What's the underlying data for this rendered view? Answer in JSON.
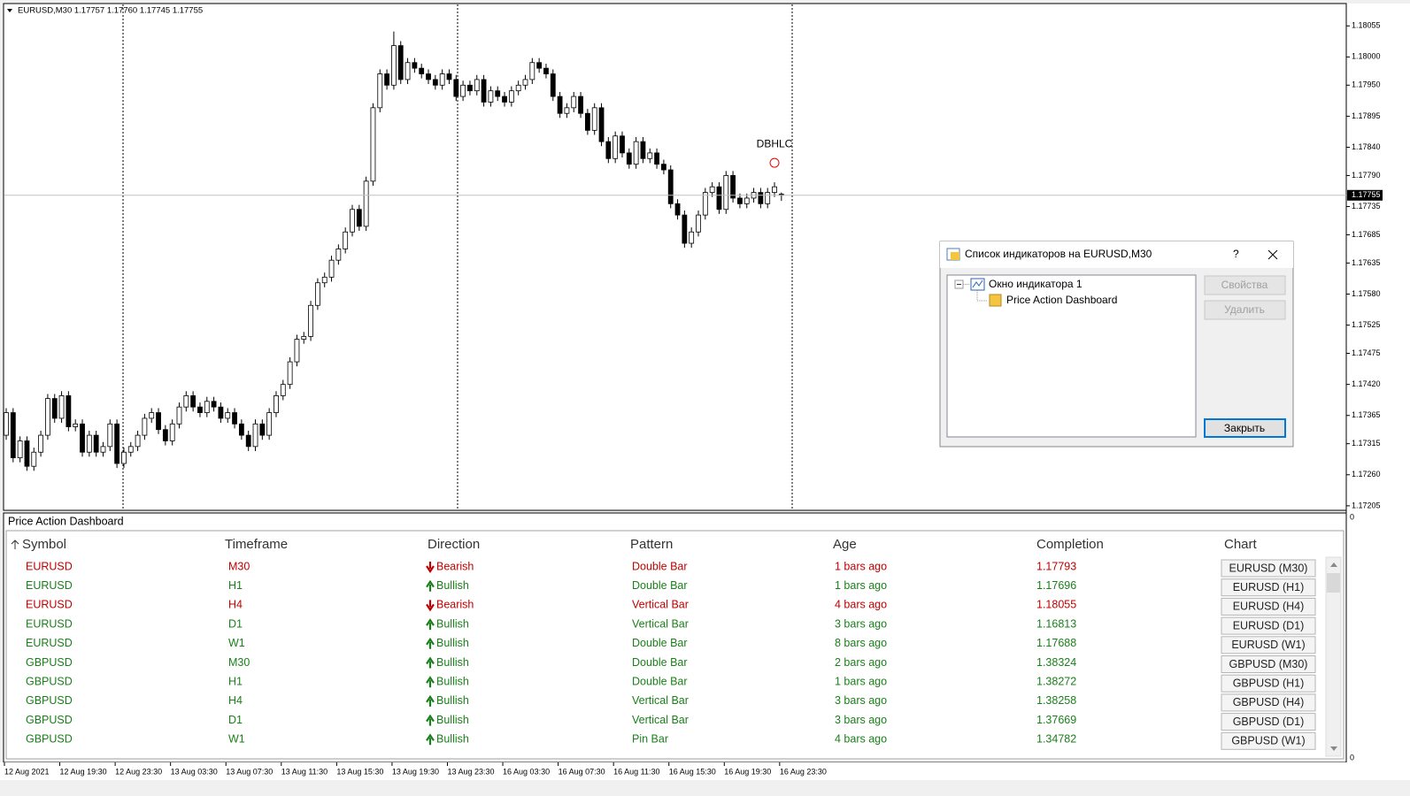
{
  "chart_data": {
    "type": "candlestick",
    "header": "EURUSD,M30  1.17757 1.17760 1.17745 1.17755",
    "annotation": "DBHLC",
    "current_price": {
      "value": 1.17755,
      "label": "1.17755"
    },
    "ylim": [
      1.17197,
      1.18093
    ],
    "yticks": [
      1.18055,
      {
        "value": 1.18,
        "label": "1.18000"
      },
      {
        "value": 1.1795,
        "label": "1.17950"
      },
      1.17895,
      {
        "value": 1.1784,
        "label": "1.17840"
      },
      {
        "value": 1.1779,
        "label": "1.17790"
      },
      1.17735,
      1.17685,
      1.17635,
      {
        "value": 1.1758,
        "label": "1.17580"
      },
      1.17525,
      1.17475,
      {
        "value": 1.1742,
        "label": "1.17420"
      },
      1.17365,
      1.17315,
      {
        "value": 1.1726,
        "label": "1.17260"
      },
      1.17205
    ],
    "xticks": [
      {
        "value": 0,
        "label": "12 Aug 2021"
      },
      {
        "value": 8,
        "label": "12 Aug 19:30"
      },
      {
        "value": 16,
        "label": "12 Aug 23:30"
      },
      {
        "value": 24,
        "label": "13 Aug 03:30"
      },
      {
        "value": 32,
        "label": "13 Aug 07:30"
      },
      {
        "value": 40,
        "label": "13 Aug 11:30"
      },
      {
        "value": 48,
        "label": "13 Aug 15:30"
      },
      {
        "value": 56,
        "label": "13 Aug 19:30"
      },
      {
        "value": 64,
        "label": "13 Aug 23:30"
      },
      {
        "value": 72,
        "label": "16 Aug 03:30"
      },
      {
        "value": 80,
        "label": "16 Aug 07:30"
      },
      {
        "value": 88,
        "label": "16 Aug 11:30"
      },
      {
        "value": 96,
        "label": "16 Aug 15:30"
      },
      {
        "value": 104,
        "label": "16 Aug 19:30"
      },
      {
        "value": 112,
        "label": "16 Aug 23:30"
      }
    ],
    "up_color": "#ffffff",
    "down_color": "#000000",
    "candles": [
      [
        1.1733,
        1.17378,
        1.17322,
        1.1737
      ],
      [
        1.1737,
        1.17378,
        1.17282,
        1.1729
      ],
      [
        1.1729,
        1.17328,
        1.17282,
        1.1732
      ],
      [
        1.1732,
        1.17328,
        1.17267,
        1.17275
      ],
      [
        1.17275,
        1.17308,
        1.17267,
        1.173
      ],
      [
        1.173,
        1.17338,
        1.17292,
        1.1733
      ],
      [
        1.1733,
        1.17403,
        1.17322,
        1.17395
      ],
      [
        1.17395,
        1.17403,
        1.17352,
        1.1736
      ],
      [
        1.1736,
        1.17408,
        1.17352,
        1.174
      ],
      [
        1.174,
        1.17408,
        1.17337,
        1.17345
      ],
      [
        1.17345,
        1.17358,
        1.17337,
        1.1735
      ],
      [
        1.1735,
        1.17358,
        1.17292,
        1.173
      ],
      [
        1.173,
        1.17338,
        1.17292,
        1.1733
      ],
      [
        1.1733,
        1.17338,
        1.17292,
        1.173
      ],
      [
        1.173,
        1.17318,
        1.17292,
        1.1731
      ],
      [
        1.1731,
        1.17358,
        1.17302,
        1.1735
      ],
      [
        1.1735,
        1.17358,
        1.17272,
        1.1728
      ],
      [
        1.1728,
        1.17308,
        1.17272,
        1.173
      ],
      [
        1.173,
        1.17318,
        1.17292,
        1.1731
      ],
      [
        1.1731,
        1.17338,
        1.17302,
        1.1733
      ],
      [
        1.1733,
        1.17368,
        1.17322,
        1.1736
      ],
      [
        1.1736,
        1.17378,
        1.17352,
        1.1737
      ],
      [
        1.1737,
        1.17378,
        1.17332,
        1.1734
      ],
      [
        1.1734,
        1.17348,
        1.17312,
        1.1732
      ],
      [
        1.1732,
        1.17358,
        1.17312,
        1.1735
      ],
      [
        1.1735,
        1.17388,
        1.17342,
        1.1738
      ],
      [
        1.1738,
        1.17408,
        1.17372,
        1.174
      ],
      [
        1.174,
        1.17408,
        1.17372,
        1.1738
      ],
      [
        1.1738,
        1.17388,
        1.17362,
        1.1737
      ],
      [
        1.1737,
        1.17398,
        1.17362,
        1.1739
      ],
      [
        1.1739,
        1.17398,
        1.17372,
        1.1738
      ],
      [
        1.1738,
        1.17388,
        1.17352,
        1.1736
      ],
      [
        1.1736,
        1.17378,
        1.17352,
        1.1737
      ],
      [
        1.1737,
        1.17378,
        1.17342,
        1.1735
      ],
      [
        1.1735,
        1.17358,
        1.17322,
        1.1733
      ],
      [
        1.1733,
        1.17338,
        1.17302,
        1.1731
      ],
      [
        1.1731,
        1.17358,
        1.17302,
        1.1735
      ],
      [
        1.1735,
        1.17358,
        1.17322,
        1.1733
      ],
      [
        1.1733,
        1.17378,
        1.17322,
        1.1737
      ],
      [
        1.1737,
        1.17408,
        1.17362,
        1.174
      ],
      [
        1.174,
        1.17428,
        1.17392,
        1.1742
      ],
      [
        1.1742,
        1.17468,
        1.17412,
        1.1746
      ],
      [
        1.1746,
        1.17508,
        1.17452,
        1.175
      ],
      [
        1.175,
        1.17513,
        1.17492,
        1.17505
      ],
      [
        1.17505,
        1.17568,
        1.17497,
        1.1756
      ],
      [
        1.1756,
        1.17608,
        1.17552,
        1.176
      ],
      [
        1.176,
        1.17618,
        1.17592,
        1.1761
      ],
      [
        1.1761,
        1.17648,
        1.17602,
        1.1764
      ],
      [
        1.1764,
        1.17668,
        1.17632,
        1.1766
      ],
      [
        1.1766,
        1.17698,
        1.17652,
        1.1769
      ],
      [
        1.1769,
        1.17738,
        1.17682,
        1.1773
      ],
      [
        1.1773,
        1.17738,
        1.17692,
        1.177
      ],
      [
        1.177,
        1.17788,
        1.17692,
        1.1778
      ],
      [
        1.1778,
        1.17918,
        1.17772,
        1.1791
      ],
      [
        1.1791,
        1.17978,
        1.17902,
        1.1797
      ],
      [
        1.1797,
        1.17978,
        1.17942,
        1.1795
      ],
      [
        1.1795,
        1.18045,
        1.17942,
        1.1802
      ],
      [
        1.1802,
        1.18028,
        1.17952,
        1.1796
      ],
      [
        1.1796,
        1.17998,
        1.17952,
        1.1799
      ],
      [
        1.1799,
        1.17998,
        1.17972,
        1.1798
      ],
      [
        1.1798,
        1.17988,
        1.17962,
        1.1797
      ],
      [
        1.1797,
        1.17978,
        1.17952,
        1.1796
      ],
      [
        1.1796,
        1.17968,
        1.17942,
        1.1795
      ],
      [
        1.1795,
        1.17978,
        1.17942,
        1.1797
      ],
      [
        1.1797,
        1.17978,
        1.17952,
        1.1796
      ],
      [
        1.1796,
        1.17968,
        1.17922,
        1.1793
      ],
      [
        1.1793,
        1.17958,
        1.17922,
        1.1795
      ],
      [
        1.1795,
        1.17958,
        1.17932,
        1.1794
      ],
      [
        1.1794,
        1.17968,
        1.17932,
        1.1796
      ],
      [
        1.1796,
        1.17968,
        1.17912,
        1.1792
      ],
      [
        1.1792,
        1.17948,
        1.17912,
        1.1794
      ],
      [
        1.1794,
        1.17948,
        1.17922,
        1.1793
      ],
      [
        1.1793,
        1.17938,
        1.17912,
        1.1792
      ],
      [
        1.1792,
        1.17948,
        1.17912,
        1.1794
      ],
      [
        1.1794,
        1.17958,
        1.17932,
        1.1795
      ],
      [
        1.1795,
        1.17968,
        1.17942,
        1.1796
      ],
      [
        1.1796,
        1.17998,
        1.17952,
        1.1799
      ],
      [
        1.1799,
        1.17998,
        1.17972,
        1.1798
      ],
      [
        1.1798,
        1.17988,
        1.17962,
        1.1797
      ],
      [
        1.1797,
        1.17978,
        1.17922,
        1.1793
      ],
      [
        1.1793,
        1.17938,
        1.17892,
        1.179
      ],
      [
        1.179,
        1.17918,
        1.17892,
        1.1791
      ],
      [
        1.1791,
        1.17938,
        1.17902,
        1.1793
      ],
      [
        1.1793,
        1.17938,
        1.17892,
        1.179
      ],
      [
        1.179,
        1.17908,
        1.17862,
        1.1787
      ],
      [
        1.1787,
        1.17918,
        1.17862,
        1.1791
      ],
      [
        1.1791,
        1.17918,
        1.17842,
        1.1785
      ],
      [
        1.1785,
        1.17858,
        1.17812,
        1.1782
      ],
      [
        1.1782,
        1.17868,
        1.17812,
        1.1786
      ],
      [
        1.1786,
        1.17868,
        1.17822,
        1.1783
      ],
      [
        1.1783,
        1.17838,
        1.17802,
        1.1781
      ],
      [
        1.1781,
        1.17858,
        1.17802,
        1.1785
      ],
      [
        1.1785,
        1.17858,
        1.17812,
        1.1782
      ],
      [
        1.1782,
        1.17838,
        1.17812,
        1.1783
      ],
      [
        1.1783,
        1.17838,
        1.17802,
        1.1781
      ],
      [
        1.1781,
        1.17818,
        1.17792,
        1.178
      ],
      [
        1.178,
        1.17808,
        1.17732,
        1.1774
      ],
      [
        1.1774,
        1.17748,
        1.17712,
        1.1772
      ],
      [
        1.1772,
        1.17728,
        1.17662,
        1.1767
      ],
      [
        1.1767,
        1.17698,
        1.17662,
        1.1769
      ],
      [
        1.1769,
        1.17728,
        1.17682,
        1.1772
      ],
      [
        1.1772,
        1.17768,
        1.17712,
        1.1776
      ],
      [
        1.1776,
        1.17778,
        1.17752,
        1.1777
      ],
      [
        1.1777,
        1.17778,
        1.17722,
        1.1773
      ],
      [
        1.1773,
        1.17798,
        1.17722,
        1.1779
      ],
      [
        1.1779,
        1.17798,
        1.17742,
        1.1775
      ],
      [
        1.1775,
        1.17758,
        1.17732,
        1.1774
      ],
      [
        1.1774,
        1.17758,
        1.17732,
        1.1775
      ],
      [
        1.1775,
        1.17768,
        1.17742,
        1.1776
      ],
      [
        1.1776,
        1.17768,
        1.17732,
        1.1774
      ],
      [
        1.1774,
        1.17768,
        1.17732,
        1.1776
      ],
      [
        1.1776,
        1.17778,
        1.17752,
        1.1777
      ],
      [
        1.17757,
        1.1776,
        1.17745,
        1.17755
      ]
    ]
  },
  "subwindow_axis": [
    "0",
    "0"
  ],
  "dashboard": {
    "title": "Price Action Dashboard",
    "columns": [
      "Symbol",
      "Timeframe",
      "Direction",
      "Pattern",
      "Age",
      "Completion",
      "Chart"
    ],
    "rows": [
      {
        "color": "#c00000",
        "cells": [
          "EURUSD",
          "M30",
          "Bearish",
          "Double Bar",
          "1 bars ago",
          "1.17793"
        ],
        "chart": "EURUSD (M30)"
      },
      {
        "color": "#1a7f1a",
        "cells": [
          "EURUSD",
          "H1",
          "Bullish",
          "Double Bar",
          "1 bars ago",
          "1.17696"
        ],
        "chart": "EURUSD (H1)"
      },
      {
        "color": "#c00000",
        "cells": [
          "EURUSD",
          "H4",
          "Bearish",
          "Vertical Bar",
          "4 bars ago",
          "1.18055"
        ],
        "chart": "EURUSD (H4)"
      },
      {
        "color": "#1a7f1a",
        "cells": [
          "EURUSD",
          "D1",
          "Bullish",
          "Vertical Bar",
          "3 bars ago",
          "1.16813"
        ],
        "chart": "EURUSD (D1)"
      },
      {
        "color": "#1a7f1a",
        "cells": [
          "EURUSD",
          "W1",
          "Bullish",
          "Double Bar",
          "8 bars ago",
          "1.17688"
        ],
        "chart": "EURUSD (W1)"
      },
      {
        "color": "#1a7f1a",
        "cells": [
          "GBPUSD",
          "M30",
          "Bullish",
          "Double Bar",
          "2 bars ago",
          "1.38324"
        ],
        "chart": "GBPUSD (M30)"
      },
      {
        "color": "#1a7f1a",
        "cells": [
          "GBPUSD",
          "H1",
          "Bullish",
          "Double Bar",
          "1 bars ago",
          "1.38272"
        ],
        "chart": "GBPUSD (H1)"
      },
      {
        "color": "#1a7f1a",
        "cells": [
          "GBPUSD",
          "H4",
          "Bullish",
          "Vertical Bar",
          "3 bars ago",
          "1.38258"
        ],
        "chart": "GBPUSD (H4)"
      },
      {
        "color": "#1a7f1a",
        "cells": [
          "GBPUSD",
          "D1",
          "Bullish",
          "Vertical Bar",
          "3 bars ago",
          "1.37669"
        ],
        "chart": "GBPUSD (D1)"
      },
      {
        "color": "#1a7f1a",
        "cells": [
          "GBPUSD",
          "W1",
          "Bullish",
          "Pin Bar",
          "4 bars ago",
          "1.34782"
        ],
        "chart": "GBPUSD (W1)"
      }
    ]
  },
  "dialog": {
    "title": "Список индикаторов на EURUSD,M30",
    "help": "?",
    "tree": {
      "window": "Окно индикатора 1",
      "indicator": "Price Action Dashboard"
    },
    "buttons": {
      "properties": "Свойства",
      "delete": "Удалить",
      "close": "Закрыть"
    }
  }
}
